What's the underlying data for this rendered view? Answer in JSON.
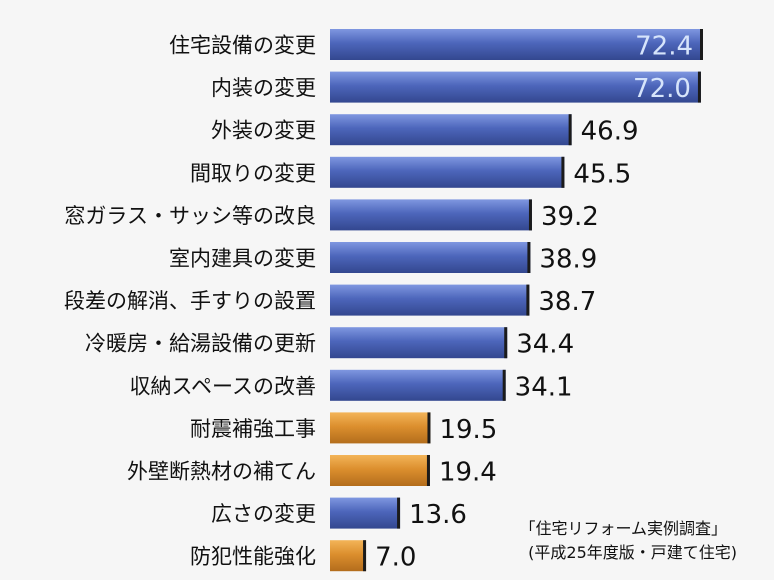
{
  "chart_data": {
    "type": "bar",
    "orientation": "horizontal",
    "categories": [
      "住宅設備の変更",
      "内装の変更",
      "外装の変更",
      "間取りの変更",
      "窓ガラス・サッシ等の改良",
      "室内建具の変更",
      "段差の解消、手すりの設置",
      "冷暖房・給湯設備の更新",
      "収納スペースの改善",
      "耐震補強工事",
      "外壁断熱材の補てん",
      "広さの変更",
      "防犯性能強化"
    ],
    "values": [
      72.4,
      72.0,
      46.9,
      45.5,
      39.2,
      38.9,
      38.7,
      34.4,
      34.1,
      19.5,
      19.4,
      13.6,
      7.0
    ],
    "value_labels": [
      "72.4",
      "72.0",
      "46.9",
      "45.5",
      "39.2",
      "38.9",
      "38.7",
      "34.4",
      "34.1",
      "19.5",
      "19.4",
      "13.6",
      "7.0"
    ],
    "highlighted": [
      false,
      false,
      false,
      false,
      false,
      false,
      false,
      false,
      false,
      true,
      true,
      false,
      true
    ],
    "colors": {
      "default": "#4a63b5",
      "highlight": "#d98c2c"
    },
    "xlim": [
      0,
      72.4
    ],
    "source_lines": [
      "「住宅リフォーム実例調査」",
      "(平成25年度版・戸建て住宅)"
    ]
  }
}
